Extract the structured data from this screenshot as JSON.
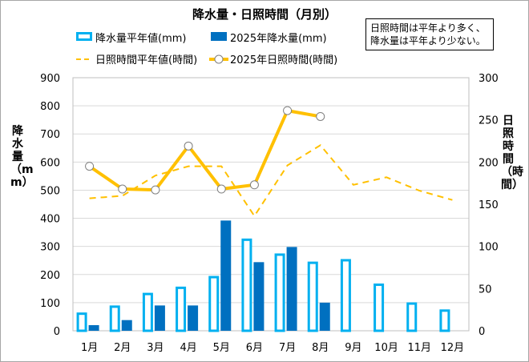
{
  "chart_data": {
    "type": "bar+line",
    "title": "降水量・日照時間（月別）",
    "note_lines": [
      "日照時間は平年より多く、",
      "降水量は平年より少ない。"
    ],
    "categories": [
      "1月",
      "2月",
      "3月",
      "4月",
      "5月",
      "6月",
      "7月",
      "8月",
      "9月",
      "10月",
      "11月",
      "12月"
    ],
    "y_left": {
      "label": "降水量（mm）",
      "range": [
        0,
        900
      ],
      "ticks": [
        "0",
        "100",
        "200",
        "300",
        "400",
        "500",
        "600",
        "700",
        "800",
        "900"
      ]
    },
    "y_right": {
      "label": "日照時間（時間）",
      "range": [
        0,
        300
      ],
      "ticks": [
        "0",
        "50",
        "100",
        "150",
        "200",
        "250",
        "300"
      ]
    },
    "series": [
      {
        "name": "降水量平年値(mm)",
        "kind": "bar",
        "style": "outline",
        "axis": "left",
        "color": "#00b0f0",
        "values": [
          65,
          90,
          135,
          157,
          195,
          328,
          275,
          246,
          255,
          168,
          101,
          76
        ]
      },
      {
        "name": "2025年降水量(mm)",
        "kind": "bar",
        "style": "filled",
        "axis": "left",
        "color": "#0070c0",
        "values": [
          20,
          38,
          90,
          90,
          392,
          244,
          298,
          100,
          null,
          null,
          null,
          null
        ]
      },
      {
        "name": "日照時間平年値(時間)",
        "kind": "line",
        "style": "dashed",
        "axis": "right",
        "color": "#ffc000",
        "values": [
          157,
          160,
          184,
          195,
          195,
          136,
          196,
          220,
          173,
          182,
          166,
          155
        ]
      },
      {
        "name": "2025年日照時間(時間)",
        "kind": "line",
        "style": "solid-marker",
        "axis": "right",
        "color": "#ffc000",
        "values": [
          195,
          168,
          167,
          219,
          168,
          173,
          261,
          254,
          null,
          null,
          null,
          null
        ]
      }
    ],
    "legend_position": "top"
  }
}
